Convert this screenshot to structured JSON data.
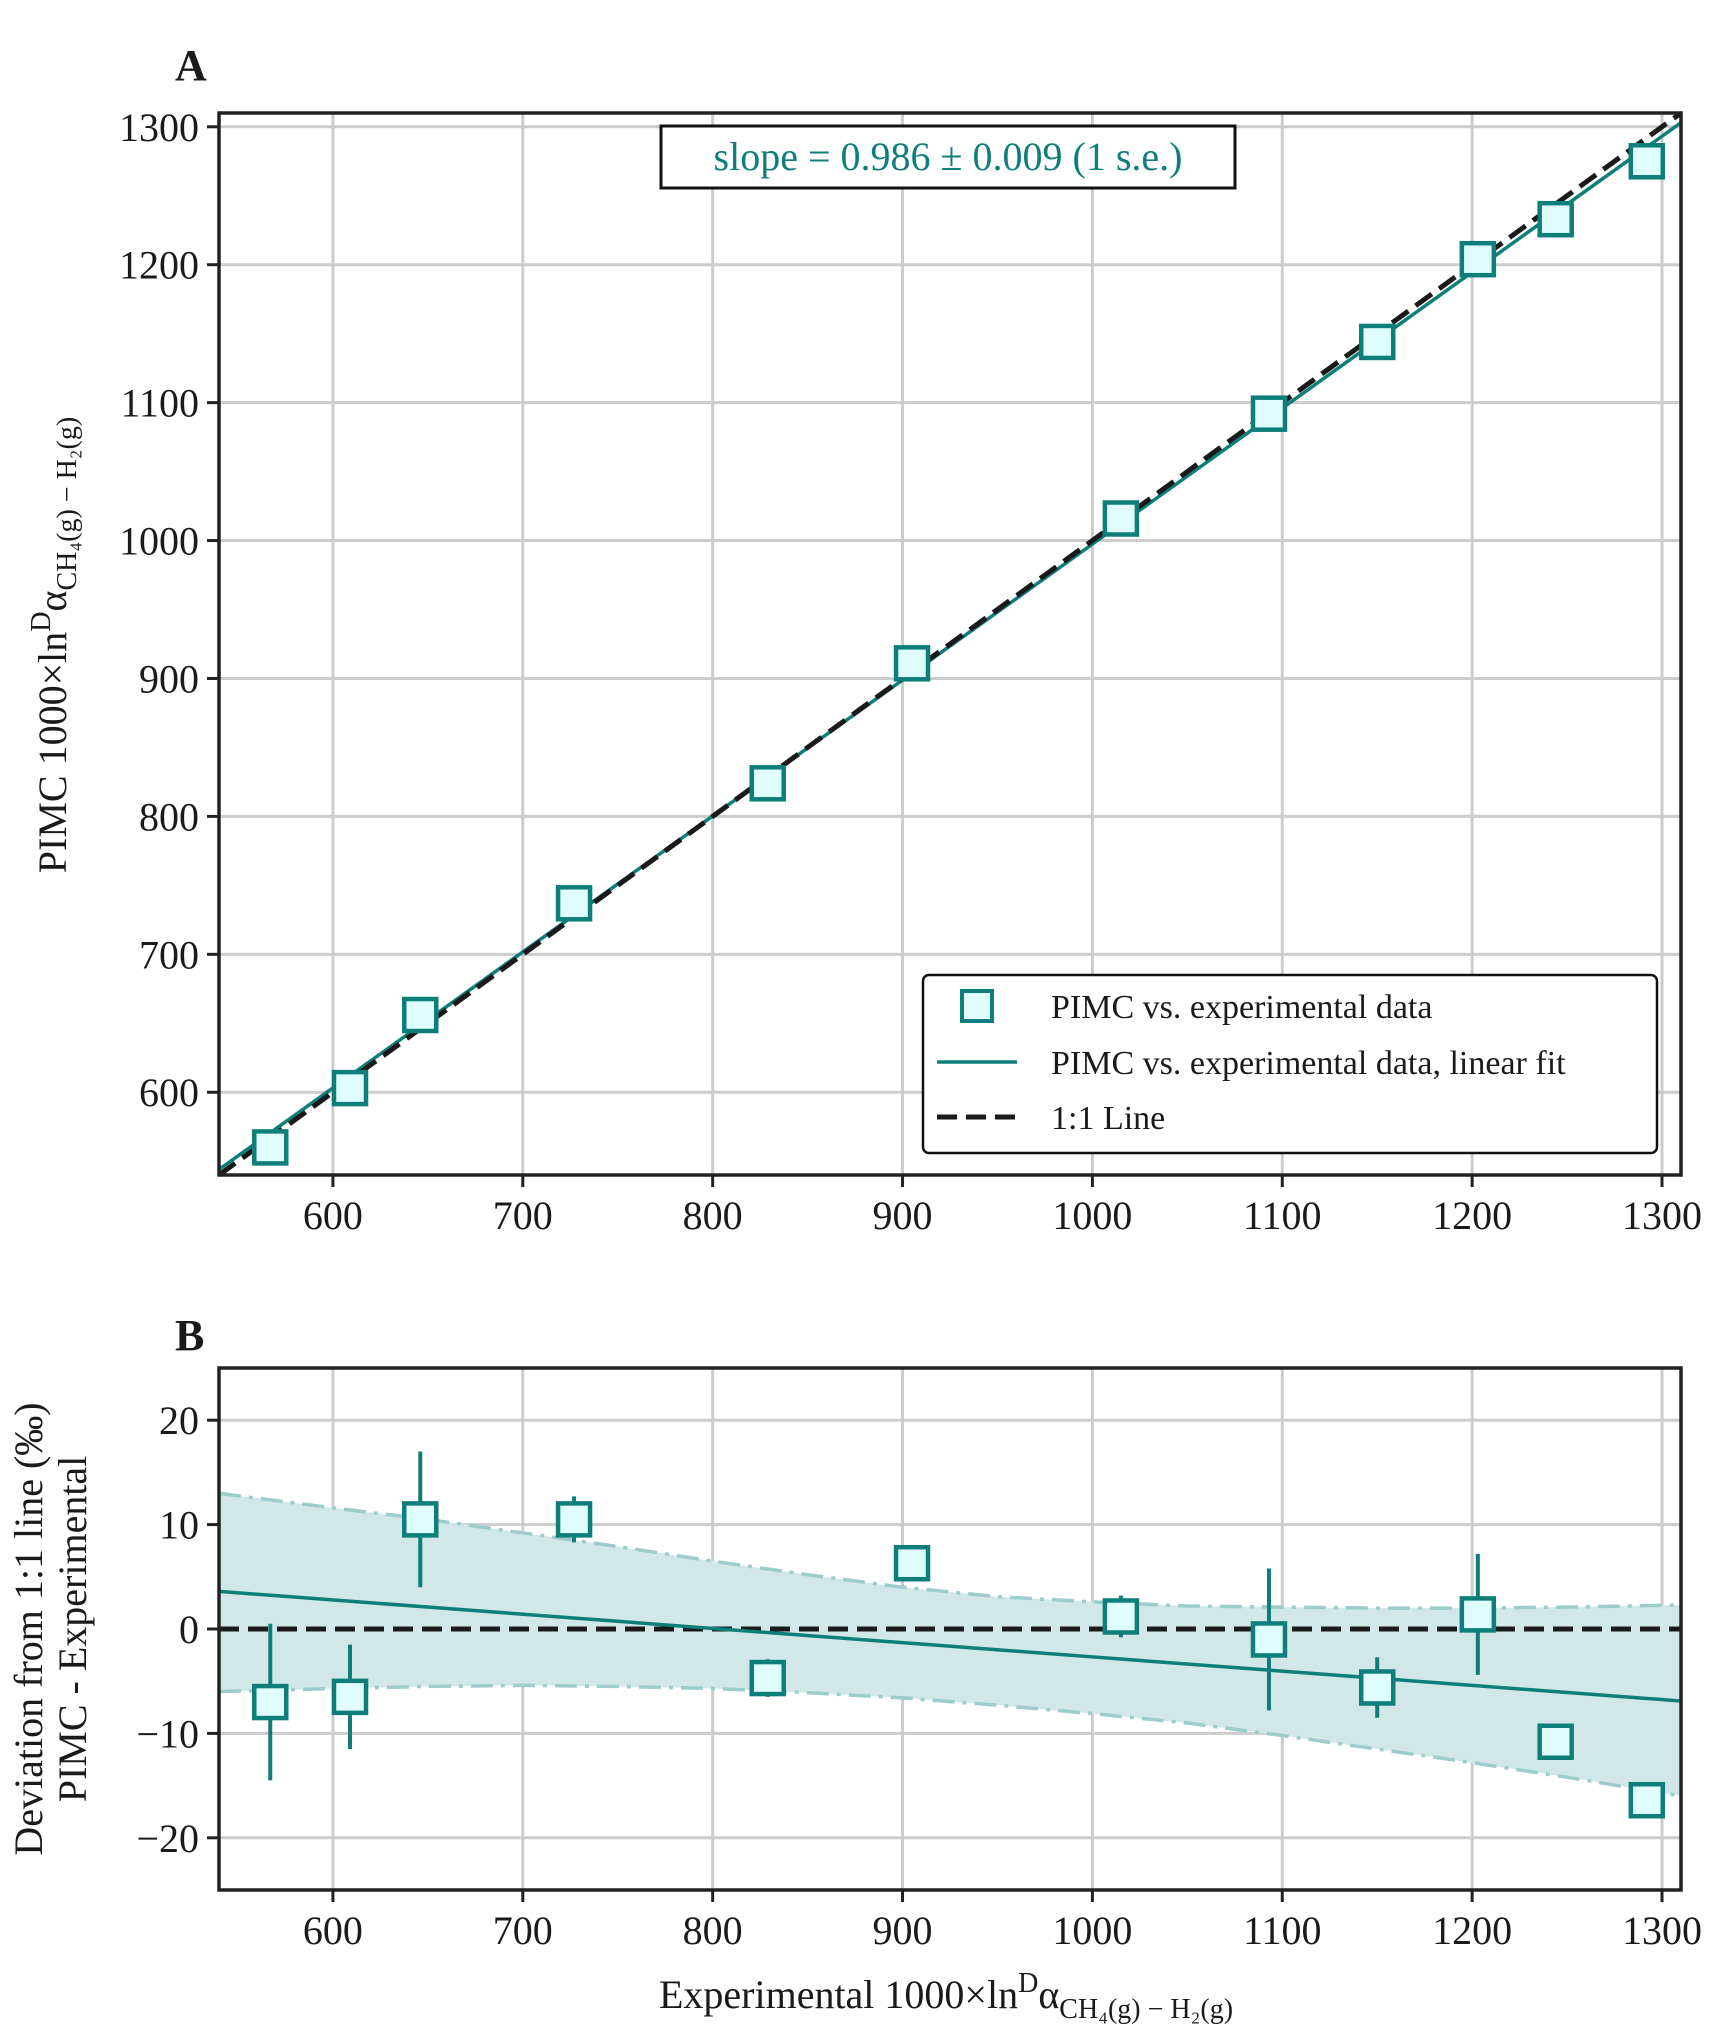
{
  "colors": {
    "teal": "#0e7e7a",
    "marker_fill": "#dffdfd",
    "band_fill": "#d2e8e8",
    "band_edge": "#9ccccc",
    "grid": "#cccccc",
    "axis": "#222222",
    "one_to_one": "#1a1a1a"
  },
  "chart_data": [
    {
      "panel": "A",
      "type": "scatter",
      "title": "",
      "xlabel": "",
      "ylabel_prefix": "PIMC  1000×ln",
      "ylabel_sup": "D",
      "ylabel_alpha": "α",
      "ylabel_sub": "CH₄(g) − H₂(g)",
      "xlim": [
        540,
        1310
      ],
      "ylim": [
        540,
        1310
      ],
      "xticks": [
        "600",
        "700",
        "800",
        "900",
        "1000",
        "1100",
        "1200",
        "1300"
      ],
      "yticks": [
        "600",
        "700",
        "800",
        "900",
        "1000",
        "1100",
        "1200",
        "1300"
      ],
      "grid": true,
      "annotation": "slope = 0.986 ± 0.009 (1 s.e.)",
      "legend_position": "bottom-right",
      "legend": [
        {
          "label": "PIMC vs. experimental data",
          "kind": "marker"
        },
        {
          "label": "PIMC vs. experimental data, linear fit",
          "kind": "solid-line"
        },
        {
          "label": "1:1 Line",
          "kind": "dashed-line"
        }
      ],
      "points": [
        {
          "x": 567,
          "y": 560
        },
        {
          "x": 609,
          "y": 603
        },
        {
          "x": 646,
          "y": 656
        },
        {
          "x": 727,
          "y": 737
        },
        {
          "x": 829,
          "y": 824
        },
        {
          "x": 905,
          "y": 911
        },
        {
          "x": 1015,
          "y": 1016
        },
        {
          "x": 1093,
          "y": 1092
        },
        {
          "x": 1150,
          "y": 1144
        },
        {
          "x": 1203,
          "y": 1204
        },
        {
          "x": 1244,
          "y": 1233
        },
        {
          "x": 1292,
          "y": 1275
        }
      ],
      "fit_line": {
        "x": [
          540,
          1310
        ],
        "y": [
          544,
          1303
        ]
      },
      "one_to_one_line": {
        "x": [
          540,
          1310
        ],
        "y": [
          540,
          1310
        ]
      }
    },
    {
      "panel": "B",
      "type": "scatter",
      "title": "",
      "xlabel_prefix": "Experimental 1000×ln",
      "xlabel_sup": "D",
      "xlabel_alpha": "α",
      "xlabel_sub": "CH₄(g) − H₂(g)",
      "ylabel_line1": "Deviation from 1:1 line (‰)",
      "ylabel_line2": "PIMC - Experimental",
      "xlim": [
        540,
        1310
      ],
      "ylim": [
        -25,
        25
      ],
      "xticks": [
        "600",
        "700",
        "800",
        "900",
        "1000",
        "1100",
        "1200",
        "1300"
      ],
      "yticks": [
        "20",
        "10",
        "0",
        "−10",
        "−20"
      ],
      "grid": true,
      "points": [
        {
          "x": 567,
          "y": -7,
          "err": 7.5
        },
        {
          "x": 609,
          "y": -6.5,
          "err": 5
        },
        {
          "x": 646,
          "y": 10.5,
          "err": 6.5
        },
        {
          "x": 727,
          "y": 10.5,
          "err": 2.2
        },
        {
          "x": 829,
          "y": -4.7,
          "err": 1.8
        },
        {
          "x": 905,
          "y": 6.3,
          "err": 0
        },
        {
          "x": 1015,
          "y": 1.2,
          "err": 2
        },
        {
          "x": 1093,
          "y": -1,
          "err": 6.8
        },
        {
          "x": 1150,
          "y": -5.6,
          "err": 2.9
        },
        {
          "x": 1203,
          "y": 1.4,
          "err": 5.8
        },
        {
          "x": 1244,
          "y": -10.8,
          "err": 0
        },
        {
          "x": 1292,
          "y": -16.4,
          "err": 0
        }
      ],
      "fit_line": {
        "x": [
          540,
          1310
        ],
        "y": [
          3.6,
          -6.9
        ]
      },
      "zero_line": 0,
      "confidence_band": {
        "x": [
          540,
          600,
          650,
          700,
          750,
          800,
          850,
          900,
          950,
          1000,
          1050,
          1100,
          1150,
          1200,
          1250,
          1310
        ],
        "upper": [
          13,
          11.6,
          10.5,
          9.2,
          7.9,
          6.5,
          5.2,
          4,
          3.1,
          2.6,
          2.2,
          2.1,
          2,
          2,
          2.1,
          2.3
        ],
        "lower": [
          -6,
          -5.7,
          -5.5,
          -5.4,
          -5.5,
          -5.7,
          -6.1,
          -6.6,
          -7.3,
          -8.1,
          -9,
          -10.2,
          -11.5,
          -12.8,
          -14.2,
          -16
        ]
      }
    }
  ]
}
